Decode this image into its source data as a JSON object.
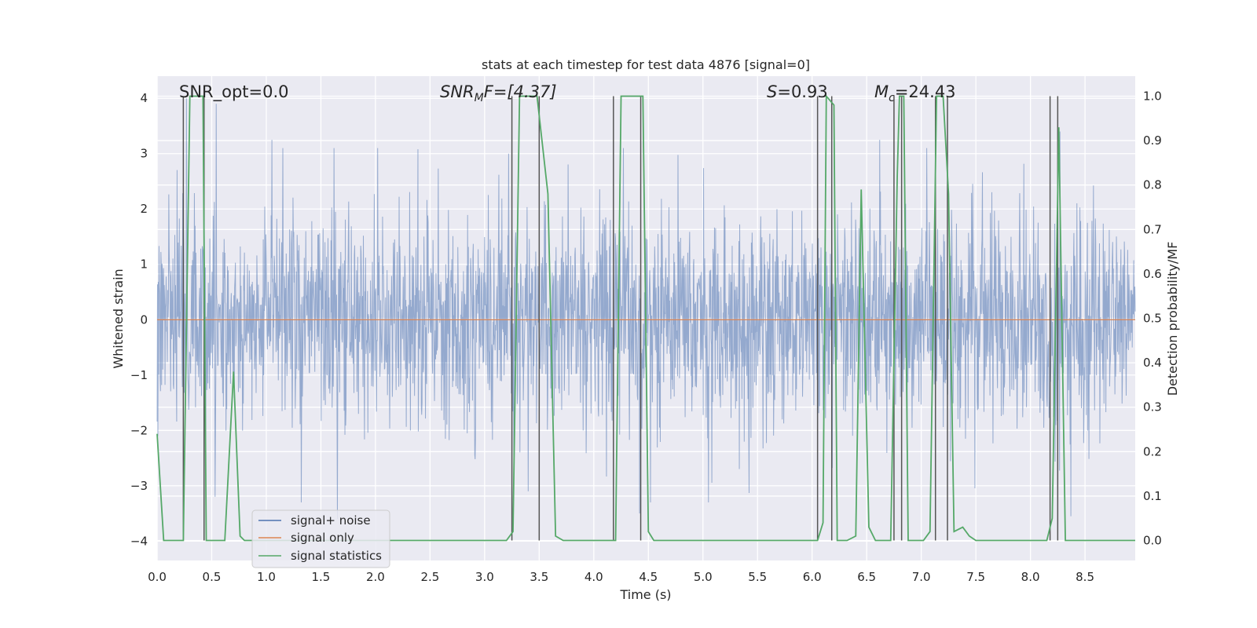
{
  "chart_data": {
    "type": "line",
    "title": "stats at each timestep for test data 4876 [signal=0]",
    "xlabel": "Time (s)",
    "ylabel": "Whitened strain",
    "ylabel_right": "Detection probability/MF",
    "xlim": [
      0.0,
      8.96
    ],
    "ylim": [
      -4.35,
      4.4
    ],
    "ylim_right": [
      -0.045,
      1.045
    ],
    "xticks": [
      0.0,
      0.5,
      1.0,
      1.5,
      2.0,
      2.5,
      3.0,
      3.5,
      4.0,
      4.5,
      5.0,
      5.5,
      6.0,
      6.5,
      7.0,
      7.5,
      8.0,
      8.5
    ],
    "xtick_labels": [
      "0.0",
      "0.5",
      "1.0",
      "1.5",
      "2.0",
      "2.5",
      "3.0",
      "3.5",
      "4.0",
      "4.5",
      "5.0",
      "5.5",
      "6.0",
      "6.5",
      "7.0",
      "7.5",
      "8.0",
      "8.5"
    ],
    "yticks": [
      4,
      3,
      2,
      1,
      0,
      -1,
      -2,
      -3,
      -4
    ],
    "ytick_labels": [
      "4",
      "3",
      "2",
      "1",
      "0",
      "−1",
      "−2",
      "−3",
      "−4"
    ],
    "yticks_right": [
      1.0,
      0.9,
      0.8,
      0.7,
      0.6,
      0.5,
      0.4,
      0.3,
      0.2,
      0.1,
      0.0
    ],
    "ytick_right_labels": [
      "1.0",
      "0.9",
      "0.8",
      "0.7",
      "0.6",
      "0.5",
      "0.4",
      "0.3",
      "0.2",
      "0.1",
      "0.0"
    ],
    "annotations": {
      "snr_opt": "SNR_opt=0.0",
      "snr_mf_name": "SNR",
      "snr_mf_sub": "M",
      "snr_mf_value": "F=[4.37]",
      "s_name": "S",
      "s_value": "=0.93",
      "mc_name": "M",
      "mc_sub": "c",
      "mc_value": "=24.43"
    },
    "legend": {
      "placement": "lower-left",
      "entries": [
        "signal+ noise",
        "signal only",
        "signal statistics"
      ]
    },
    "series": [
      {
        "name": "signal+ noise",
        "color": "#4c72b0",
        "style": "dense noise, roughly within ±2.5 with spikes to ±4",
        "noise_seed": 4876,
        "noise_points": 2600,
        "noise_range": [
          -4.0,
          4.0
        ],
        "spikes": [
          [
            0.27,
            4.0
          ],
          [
            0.54,
            3.9
          ],
          [
            0.43,
            2.6
          ],
          [
            1.05,
            3.25
          ],
          [
            1.15,
            3.1
          ],
          [
            1.62,
            3.1
          ],
          [
            2.02,
            3.1
          ],
          [
            3.22,
            3.0
          ],
          [
            4.27,
            3.1
          ],
          [
            4.42,
            -3.5
          ],
          [
            4.52,
            -3.3
          ],
          [
            6.62,
            3.25
          ],
          [
            7.05,
            3.1
          ],
          [
            8.27,
            3.4
          ],
          [
            8.37,
            -3.55
          ],
          [
            1.65,
            -3.6
          ],
          [
            0.53,
            -3.2
          ],
          [
            1.32,
            -3.3
          ],
          [
            3.4,
            -3.1
          ],
          [
            5.05,
            -3.3
          ]
        ]
      },
      {
        "name": "signal only",
        "color": "#dd8452",
        "x": [
          0.0,
          8.96
        ],
        "y": [
          0.0,
          0.0
        ]
      },
      {
        "name": "signal statistics",
        "color": "#55a868",
        "axis": "right",
        "x": [
          0.0,
          0.06,
          0.1,
          0.2,
          0.24,
          0.3,
          0.42,
          0.45,
          0.52,
          0.62,
          0.7,
          0.76,
          0.8,
          0.86,
          3.2,
          3.26,
          3.32,
          3.48,
          3.58,
          3.65,
          3.72,
          4.2,
          4.25,
          4.45,
          4.5,
          4.55,
          6.05,
          6.1,
          6.13,
          6.2,
          6.23,
          6.32,
          6.4,
          6.45,
          6.52,
          6.58,
          6.66,
          6.72,
          6.78,
          6.8,
          6.84,
          6.88,
          6.92,
          7.02,
          7.08,
          7.14,
          7.2,
          7.25,
          7.3,
          7.38,
          7.44,
          7.5,
          7.58,
          8.15,
          8.2,
          8.26,
          8.32,
          8.96
        ],
        "y": [
          0.24,
          0.0,
          0.0,
          0.0,
          0.0,
          1.0,
          1.0,
          0.0,
          0.0,
          0.0,
          0.38,
          0.01,
          0.0,
          0.0,
          0.0,
          0.02,
          1.0,
          1.0,
          0.78,
          0.01,
          0.0,
          0.0,
          1.0,
          1.0,
          0.02,
          0.0,
          0.0,
          0.04,
          1.0,
          0.98,
          0.0,
          0.0,
          0.01,
          0.79,
          0.03,
          0.0,
          0.0,
          0.0,
          0.82,
          1.0,
          1.0,
          0.0,
          0.0,
          0.0,
          0.02,
          1.0,
          1.0,
          0.78,
          0.02,
          0.03,
          0.01,
          0.0,
          0.0,
          0.0,
          0.05,
          0.93,
          0.0,
          0.0
        ]
      }
    ],
    "vertical_lines": {
      "color": "#555555",
      "x": [
        0.24,
        0.43,
        3.25,
        3.5,
        4.18,
        4.43,
        6.05,
        6.18,
        6.75,
        6.82,
        7.13,
        7.24,
        8.18,
        8.25
      ]
    }
  }
}
